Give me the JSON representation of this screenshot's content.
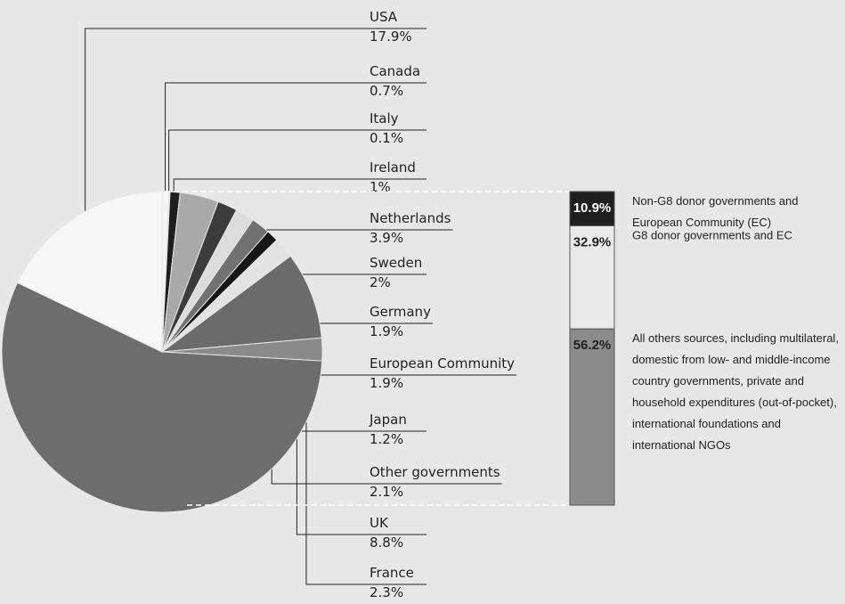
{
  "chart_data": [
    {
      "type": "pie",
      "categories": [
        "Canada",
        "Italy",
        "Ireland",
        "Netherlands",
        "Sweden",
        "Germany",
        "European Community",
        "Japan",
        "Other governments",
        "UK",
        "France",
        null,
        "USA"
      ],
      "values": [
        0.7,
        0.1,
        1,
        3.9,
        2,
        1.9,
        1.9,
        1.2,
        2.1,
        8.8,
        2.3,
        56.2,
        17.9
      ],
      "value_labels": [
        "0.7%",
        "0.1%",
        "1%",
        "3.9%",
        "2%",
        "1.9%",
        "1.9%",
        "1.2%",
        "2.1%",
        "8.8%",
        "2.3%",
        null,
        "17.9%"
      ],
      "colors": [
        "#f4f4f4",
        "#d8d8d8",
        "#1e1e1e",
        "#a9a9a9",
        "#3c3c3c",
        "#dcdcdc",
        "#717171",
        "#161616",
        "#e3e3e3",
        "#6b6b6b",
        "#8a8a8a",
        "#6d6d6d",
        "#f6f6f6"
      ]
    },
    {
      "type": "stacked_bar",
      "series": [
        {
          "name": "Non-G8 donor governments and European Community (EC)",
          "color": "#1f1f1f",
          "values": [
            10.9
          ]
        },
        {
          "name": "G8 donor governments and EC",
          "color": "#e9e9e9",
          "values": [
            32.9
          ]
        },
        {
          "name": "All others sources, including multilateral, domestic from low- and middle-income country governments, private and household expenditures (out-of-pocket), international foundations and international NGOs",
          "color": "#8b8b8b",
          "values": [
            56.2
          ]
        }
      ],
      "value_labels": [
        "10.9%",
        "32.9%",
        "56.2%"
      ]
    }
  ]
}
